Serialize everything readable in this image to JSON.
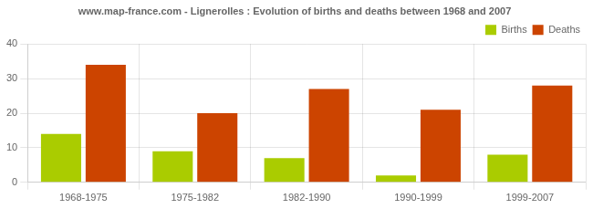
{
  "chart_data": {
    "type": "bar",
    "title": "www.map-france.com - Lignerolles : Evolution of births and deaths between 1968 and 2007",
    "categories": [
      "1968-1975",
      "1975-1982",
      "1982-1990",
      "1990-1999",
      "1999-2007"
    ],
    "series": [
      {
        "name": "Births",
        "color": "#aacc00",
        "values": [
          14,
          9,
          7,
          2,
          8
        ]
      },
      {
        "name": "Deaths",
        "color": "#cc4400",
        "values": [
          34,
          20,
          27,
          21,
          28
        ]
      }
    ],
    "ylim": [
      0,
      40
    ],
    "yticks": [
      0,
      10,
      20,
      30,
      40
    ],
    "grid": true,
    "legend": "upper right"
  }
}
